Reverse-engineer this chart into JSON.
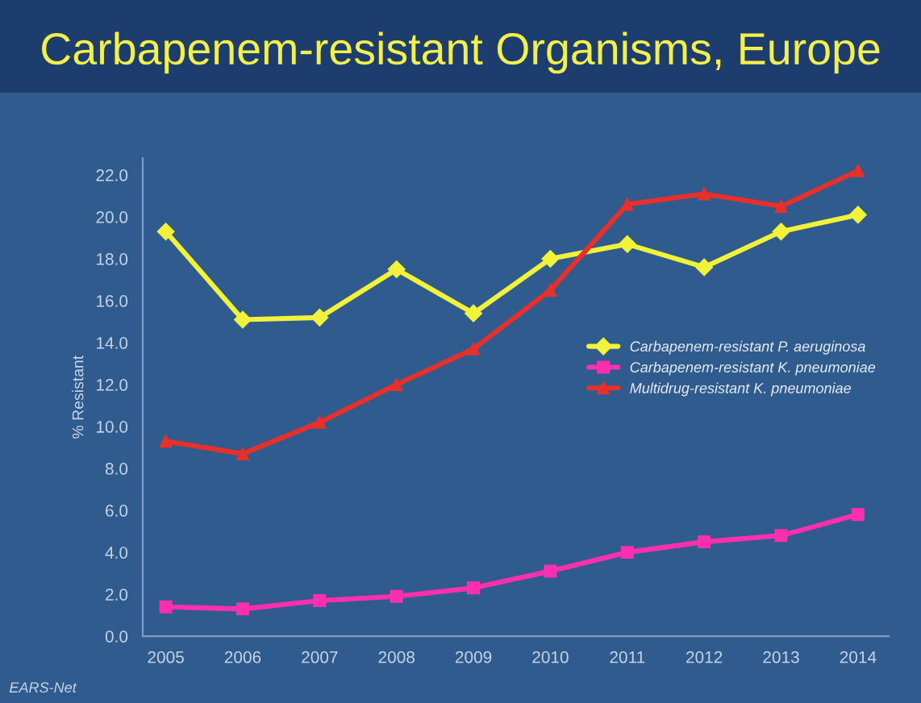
{
  "chart_data": {
    "type": "line",
    "title": "Carbapenem-resistant Organisms, Europe",
    "ylabel": "% Resistant",
    "categories": [
      "2005",
      "2006",
      "2007",
      "2008",
      "2009",
      "2010",
      "2011",
      "2012",
      "2013",
      "2014"
    ],
    "series": [
      {
        "name": "Carbapenem-resistant P. aeruginosa",
        "color": "#f2f23a",
        "marker": "diamond",
        "values": [
          19.3,
          15.1,
          15.2,
          17.5,
          15.4,
          18.0,
          18.7,
          17.6,
          19.3,
          20.1
        ]
      },
      {
        "name": "Carbapenem-resistant K. pneumoniae",
        "color": "#ff2fb0",
        "marker": "square",
        "values": [
          1.4,
          1.3,
          1.7,
          1.9,
          2.3,
          3.1,
          4.0,
          4.5,
          4.8,
          5.8
        ]
      },
      {
        "name": "Multidrug-resistant K. pneumoniae",
        "color": "#e8302a",
        "marker": "triangle",
        "values": [
          9.3,
          8.7,
          10.2,
          12.0,
          13.7,
          16.5,
          20.6,
          21.1,
          20.5,
          22.2
        ]
      }
    ],
    "ylim": [
      0,
      22.8
    ],
    "yticks": [
      {
        "value": 0,
        "label": "0.0"
      },
      {
        "value": 2,
        "label": "2.0"
      },
      {
        "value": 4,
        "label": "4.0"
      },
      {
        "value": 6,
        "label": "6.0"
      },
      {
        "value": 8,
        "label": "8.0"
      },
      {
        "value": 10,
        "label": "10.0"
      },
      {
        "value": 12,
        "label": "12.0"
      },
      {
        "value": 14,
        "label": "14.0"
      },
      {
        "value": 16,
        "label": "16.0"
      },
      {
        "value": 18,
        "label": "18.0"
      },
      {
        "value": 20,
        "label": "20.0"
      },
      {
        "value": 22,
        "label": "22.0"
      }
    ],
    "grid": false,
    "legend": "right",
    "line_style": "solid",
    "annotations": [
      "EARS-Net"
    ]
  }
}
